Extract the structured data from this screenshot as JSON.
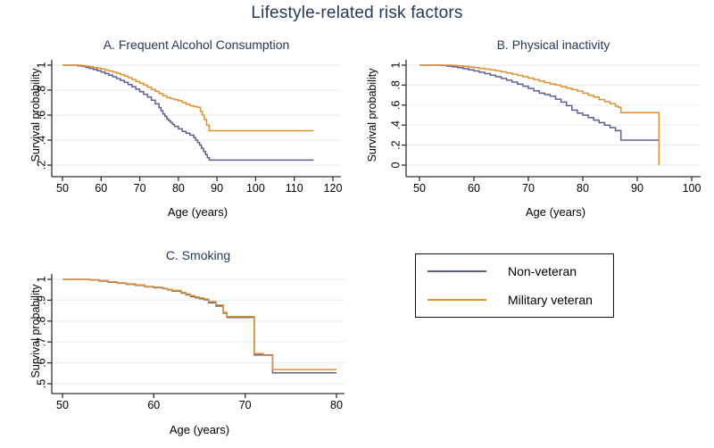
{
  "title": {
    "text": "Lifestyle-related risk factors"
  },
  "colors": {
    "non_veteran": "#5a6191",
    "military_veteran": "#e2912f",
    "grid": "#eaeef6",
    "axis": "#303030",
    "title_navy": "#24395c",
    "text": "#000000"
  },
  "legend": {
    "entries": [
      {
        "label": "Non-veteran",
        "series": "non_veteran"
      },
      {
        "label": "Military veteran",
        "series": "military_veteran"
      }
    ]
  },
  "chart_data": [
    {
      "id": "A",
      "type": "line",
      "subtype": "kaplan-meier-step",
      "title": "A. Frequent Alcohol Consumption",
      "xlabel": "Age (years)",
      "ylabel": "Survival probability",
      "xlim": [
        50,
        120
      ],
      "ylim": [
        0.15,
        1
      ],
      "grid": true,
      "x_ticks": [
        {
          "v": 50,
          "label": "50"
        },
        {
          "v": 60,
          "label": "60"
        },
        {
          "v": 70,
          "label": "70"
        },
        {
          "v": 80,
          "label": "80"
        },
        {
          "v": 90,
          "label": "90"
        },
        {
          "v": 100,
          "label": "100"
        },
        {
          "v": 110,
          "label": "110"
        },
        {
          "v": 120,
          "label": "120"
        }
      ],
      "y_ticks": [
        {
          "v": 1,
          "label": "1"
        },
        {
          "v": 0.8,
          "label": ".8"
        },
        {
          "v": 0.6,
          "label": ".6"
        },
        {
          "v": 0.4,
          "label": ".4"
        },
        {
          "v": 0.2,
          "label": ".2"
        }
      ],
      "series": [
        {
          "name": "Non-veteran",
          "key": "non_veteran",
          "steps": [
            [
              50,
              1
            ],
            [
              53,
              1
            ],
            [
              54,
              0.995
            ],
            [
              55,
              0.99
            ],
            [
              56,
              0.982
            ],
            [
              57,
              0.974
            ],
            [
              58,
              0.965
            ],
            [
              59,
              0.955
            ],
            [
              60,
              0.945
            ],
            [
              61,
              0.933
            ],
            [
              62,
              0.92
            ],
            [
              63,
              0.907
            ],
            [
              64,
              0.893
            ],
            [
              65,
              0.878
            ],
            [
              66,
              0.862
            ],
            [
              67,
              0.845
            ],
            [
              68,
              0.827
            ],
            [
              69,
              0.808
            ],
            [
              70,
              0.788
            ],
            [
              71,
              0.767
            ],
            [
              72,
              0.745
            ],
            [
              73,
              0.72
            ],
            [
              74,
              0.69
            ],
            [
              75,
              0.66
            ],
            [
              75.5,
              0.635
            ],
            [
              76,
              0.61
            ],
            [
              76.5,
              0.59
            ],
            [
              77,
              0.57
            ],
            [
              77.5,
              0.555
            ],
            [
              78,
              0.54
            ],
            [
              78.5,
              0.525
            ],
            [
              79,
              0.51
            ],
            [
              80,
              0.49
            ],
            [
              81,
              0.47
            ],
            [
              82,
              0.455
            ],
            [
              83,
              0.44
            ],
            [
              84,
              0.42
            ],
            [
              84.5,
              0.4
            ],
            [
              85,
              0.38
            ],
            [
              85.5,
              0.36
            ],
            [
              86,
              0.335
            ],
            [
              86.5,
              0.31
            ],
            [
              87,
              0.285
            ],
            [
              87.5,
              0.26
            ],
            [
              88,
              0.24
            ],
            [
              115,
              0.24
            ]
          ]
        },
        {
          "name": "Military veteran",
          "key": "military_veteran",
          "steps": [
            [
              50,
              1
            ],
            [
              54,
              1
            ],
            [
              55,
              0.996
            ],
            [
              56,
              0.992
            ],
            [
              57,
              0.987
            ],
            [
              58,
              0.981
            ],
            [
              59,
              0.975
            ],
            [
              60,
              0.969
            ],
            [
              61,
              0.961
            ],
            [
              62,
              0.953
            ],
            [
              63,
              0.944
            ],
            [
              64,
              0.935
            ],
            [
              65,
              0.924
            ],
            [
              66,
              0.912
            ],
            [
              67,
              0.899
            ],
            [
              68,
              0.885
            ],
            [
              69,
              0.87
            ],
            [
              70,
              0.856
            ],
            [
              71,
              0.84
            ],
            [
              72,
              0.824
            ],
            [
              73,
              0.806
            ],
            [
              74,
              0.79
            ],
            [
              75,
              0.772
            ],
            [
              76,
              0.754
            ],
            [
              77,
              0.74
            ],
            [
              78,
              0.732
            ],
            [
              79,
              0.723
            ],
            [
              80,
              0.715
            ],
            [
              81,
              0.7
            ],
            [
              82,
              0.687
            ],
            [
              83,
              0.675
            ],
            [
              84,
              0.668
            ],
            [
              85,
              0.662
            ],
            [
              85.7,
              0.63
            ],
            [
              86.2,
              0.6
            ],
            [
              86.7,
              0.565
            ],
            [
              87.3,
              0.52
            ],
            [
              88,
              0.475
            ],
            [
              115,
              0.475
            ]
          ]
        }
      ]
    },
    {
      "id": "B",
      "type": "line",
      "subtype": "kaplan-meier-step",
      "title": "B. Physical inactivity",
      "xlabel": "Age (years)",
      "ylabel": "Survival probability",
      "xlim": [
        50,
        100
      ],
      "ylim": [
        0,
        1
      ],
      "grid": true,
      "x_ticks": [
        {
          "v": 50,
          "label": "50"
        },
        {
          "v": 60,
          "label": "60"
        },
        {
          "v": 70,
          "label": "70"
        },
        {
          "v": 80,
          "label": "80"
        },
        {
          "v": 90,
          "label": "90"
        },
        {
          "v": 100,
          "label": "100"
        }
      ],
      "y_ticks": [
        {
          "v": 1,
          "label": "1"
        },
        {
          "v": 0.8,
          "label": ".8"
        },
        {
          "v": 0.6,
          "label": ".6"
        },
        {
          "v": 0.4,
          "label": ".4"
        },
        {
          "v": 0.2,
          "label": ".2"
        },
        {
          "v": 0,
          "label": "0"
        }
      ],
      "series": [
        {
          "name": "Non-veteran",
          "key": "non_veteran",
          "steps": [
            [
              50,
              1
            ],
            [
              53,
              1
            ],
            [
              54,
              0.996
            ],
            [
              55,
              0.99
            ],
            [
              56,
              0.983
            ],
            [
              57,
              0.975
            ],
            [
              58,
              0.965
            ],
            [
              59,
              0.954
            ],
            [
              60,
              0.942
            ],
            [
              61,
              0.929
            ],
            [
              62,
              0.915
            ],
            [
              63,
              0.9
            ],
            [
              64,
              0.884
            ],
            [
              65,
              0.867
            ],
            [
              66,
              0.849
            ],
            [
              67,
              0.83
            ],
            [
              68,
              0.81
            ],
            [
              69,
              0.789
            ],
            [
              70,
              0.767
            ],
            [
              71,
              0.744
            ],
            [
              72,
              0.72
            ],
            [
              73,
              0.705
            ],
            [
              74,
              0.69
            ],
            [
              75,
              0.66
            ],
            [
              76,
              0.63
            ],
            [
              77,
              0.595
            ],
            [
              78,
              0.55
            ],
            [
              79,
              0.52
            ],
            [
              80,
              0.5
            ],
            [
              81,
              0.475
            ],
            [
              82,
              0.45
            ],
            [
              83,
              0.425
            ],
            [
              84,
              0.4
            ],
            [
              85,
              0.375
            ],
            [
              86,
              0.345
            ],
            [
              87,
              0.25
            ],
            [
              94,
              0.25
            ]
          ]
        },
        {
          "name": "Military veteran",
          "key": "military_veteran",
          "steps": [
            [
              50,
              1
            ],
            [
              55,
              1
            ],
            [
              56,
              0.997
            ],
            [
              57,
              0.993
            ],
            [
              58,
              0.988
            ],
            [
              59,
              0.982
            ],
            [
              60,
              0.975
            ],
            [
              61,
              0.968
            ],
            [
              62,
              0.96
            ],
            [
              63,
              0.952
            ],
            [
              64,
              0.943
            ],
            [
              65,
              0.933
            ],
            [
              66,
              0.922
            ],
            [
              67,
              0.91
            ],
            [
              68,
              0.897
            ],
            [
              69,
              0.884
            ],
            [
              70,
              0.87
            ],
            [
              71,
              0.855
            ],
            [
              72,
              0.84
            ],
            [
              73,
              0.825
            ],
            [
              74,
              0.81
            ],
            [
              75,
              0.8
            ],
            [
              76,
              0.785
            ],
            [
              77,
              0.77
            ],
            [
              78,
              0.755
            ],
            [
              79,
              0.74
            ],
            [
              80,
              0.72
            ],
            [
              81,
              0.7
            ],
            [
              82,
              0.68
            ],
            [
              83,
              0.655
            ],
            [
              84,
              0.635
            ],
            [
              85,
              0.615
            ],
            [
              86,
              0.59
            ],
            [
              86.5,
              0.578
            ],
            [
              87,
              0.525
            ],
            [
              94,
              0.525
            ],
            [
              94,
              0
            ]
          ]
        }
      ]
    },
    {
      "id": "C",
      "type": "line",
      "subtype": "kaplan-meier-step",
      "title": "C. Smoking",
      "xlabel": "Age (years)",
      "ylabel": "Survival probability",
      "xlim": [
        50,
        80
      ],
      "ylim": [
        0.47,
        1
      ],
      "grid": true,
      "x_ticks": [
        {
          "v": 50,
          "label": "50"
        },
        {
          "v": 60,
          "label": "60"
        },
        {
          "v": 70,
          "label": "70"
        },
        {
          "v": 80,
          "label": "80"
        }
      ],
      "y_ticks": [
        {
          "v": 1,
          "label": "1"
        },
        {
          "v": 0.9,
          "label": ".9"
        },
        {
          "v": 0.8,
          "label": ".8"
        },
        {
          "v": 0.7,
          "label": ".7"
        },
        {
          "v": 0.6,
          "label": ".6"
        },
        {
          "v": 0.5,
          "label": ".5"
        }
      ],
      "series": [
        {
          "name": "Non-veteran",
          "key": "non_veteran",
          "steps": [
            [
              50,
              1
            ],
            [
              52.5,
              1
            ],
            [
              53,
              0.997
            ],
            [
              54,
              0.992
            ],
            [
              55,
              0.986
            ],
            [
              56,
              0.981
            ],
            [
              57,
              0.976
            ],
            [
              58,
              0.971
            ],
            [
              59,
              0.964
            ],
            [
              60,
              0.96
            ],
            [
              61,
              0.955
            ],
            [
              61.5,
              0.95
            ],
            [
              62,
              0.944
            ],
            [
              63,
              0.934
            ],
            [
              63.5,
              0.926
            ],
            [
              64,
              0.918
            ],
            [
              64.5,
              0.912
            ],
            [
              65,
              0.907
            ],
            [
              65.5,
              0.902
            ],
            [
              66,
              0.888
            ],
            [
              66.8,
              0.872
            ],
            [
              67.6,
              0.838
            ],
            [
              68,
              0.817
            ],
            [
              71,
              0.817
            ],
            [
              71,
              0.638
            ],
            [
              73,
              0.638
            ],
            [
              73,
              0.552
            ],
            [
              80,
              0.552
            ]
          ]
        },
        {
          "name": "Military veteran",
          "key": "military_veteran",
          "steps": [
            [
              50,
              1
            ],
            [
              52.5,
              1
            ],
            [
              53,
              0.998
            ],
            [
              54,
              0.994
            ],
            [
              55,
              0.988
            ],
            [
              56,
              0.983
            ],
            [
              57,
              0.978
            ],
            [
              58,
              0.973
            ],
            [
              59,
              0.966
            ],
            [
              60,
              0.962
            ],
            [
              61,
              0.957
            ],
            [
              61.5,
              0.952
            ],
            [
              62,
              0.947
            ],
            [
              63,
              0.937
            ],
            [
              63.5,
              0.93
            ],
            [
              64,
              0.922
            ],
            [
              64.5,
              0.916
            ],
            [
              65,
              0.911
            ],
            [
              65.5,
              0.906
            ],
            [
              66,
              0.893
            ],
            [
              66.8,
              0.877
            ],
            [
              67.6,
              0.842
            ],
            [
              68,
              0.822
            ],
            [
              71,
              0.822
            ],
            [
              71,
              0.645
            ],
            [
              72,
              0.645
            ],
            [
              72,
              0.636
            ],
            [
              73,
              0.636
            ],
            [
              73,
              0.568
            ],
            [
              80,
              0.568
            ]
          ]
        }
      ]
    }
  ]
}
